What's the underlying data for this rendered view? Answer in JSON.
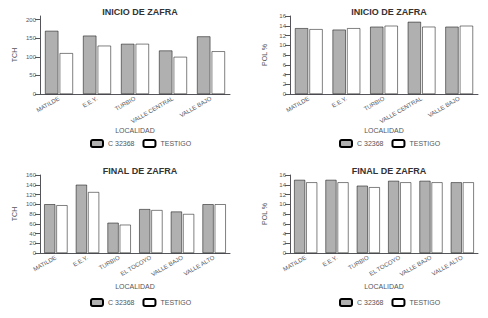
{
  "chart_data": [
    {
      "type": "bar",
      "title": "INICIO DE ZAFRA",
      "xlabel": "LOCALIDAD",
      "ylabel": "TCH",
      "categories": [
        "MATILDE",
        "E.E.Y.",
        "TURBIO",
        "VALLE CENTRAL",
        "VALLE BAJO"
      ],
      "series": [
        {
          "name": "C 32368",
          "color": "#b0b0b0",
          "values": [
            170,
            157,
            135,
            117,
            155
          ]
        },
        {
          "name": "TESTIGO",
          "color": "#ffffff",
          "values": [
            110,
            130,
            135,
            100,
            115
          ]
        }
      ],
      "ylim": [
        0,
        210
      ],
      "yticks": [
        0,
        50,
        100,
        150,
        200
      ],
      "grid": false,
      "legend": "bottom"
    },
    {
      "type": "bar",
      "title": "INICIO DE ZAFRA",
      "xlabel": "LOCALIDAD",
      "ylabel": "POL %",
      "categories": [
        "MATILDE",
        "E.E.Y.",
        "TURBIO",
        "VALLE CENTRAL",
        "VALLE BAJO"
      ],
      "series": [
        {
          "name": "C 32368",
          "color": "#b0b0b0",
          "values": [
            13.5,
            13.2,
            13.8,
            14.8,
            13.8
          ]
        },
        {
          "name": "TESTIGO",
          "color": "#ffffff",
          "values": [
            13.3,
            13.5,
            14.0,
            13.8,
            14.0
          ]
        }
      ],
      "ylim": [
        0,
        16
      ],
      "yticks": [
        0,
        2,
        4,
        6,
        8,
        10,
        12,
        14,
        16
      ],
      "grid": false,
      "legend": "bottom"
    },
    {
      "type": "bar",
      "title": "FINAL DE ZAFRA",
      "xlabel": "LOCALIDAD",
      "ylabel": "TCH",
      "categories": [
        "MATILDE",
        "E.E.Y.",
        "TURBIO",
        "EL TOCOYO",
        "VALLE BAJO",
        "VALLE ALTO"
      ],
      "series": [
        {
          "name": "C 32368",
          "color": "#b0b0b0",
          "values": [
            100,
            140,
            62,
            90,
            85,
            100
          ]
        },
        {
          "name": "TESTIGO",
          "color": "#ffffff",
          "values": [
            98,
            125,
            58,
            88,
            80,
            100
          ]
        }
      ],
      "ylim": [
        0,
        160
      ],
      "yticks": [
        0,
        20,
        40,
        60,
        80,
        100,
        120,
        140,
        160
      ],
      "grid": false,
      "legend": "bottom"
    },
    {
      "type": "bar",
      "title": "FINAL DE ZAFRA",
      "xlabel": "LOCALIDAD",
      "ylabel": "POL %",
      "categories": [
        "MATILDE",
        "E.E.Y.",
        "TURBIO",
        "EL TOCOYO",
        "VALLE BAJO",
        "VALLE ALTO"
      ],
      "series": [
        {
          "name": "C 32368",
          "color": "#b0b0b0",
          "values": [
            15.0,
            15.0,
            13.8,
            14.8,
            14.8,
            14.5
          ]
        },
        {
          "name": "TESTIGO",
          "color": "#ffffff",
          "values": [
            14.5,
            14.5,
            13.5,
            14.5,
            14.5,
            14.5
          ]
        }
      ],
      "ylim": [
        0,
        16
      ],
      "yticks": [
        0,
        2,
        4,
        6,
        8,
        10,
        12,
        14,
        16
      ],
      "grid": false,
      "legend": "bottom"
    }
  ]
}
